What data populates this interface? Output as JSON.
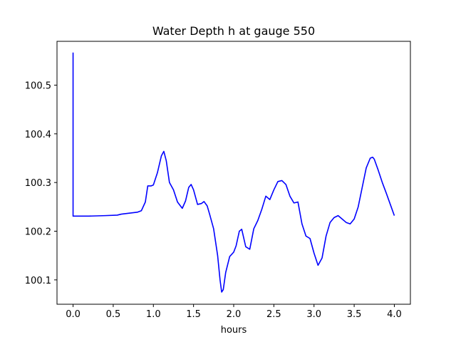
{
  "chart_data": {
    "type": "line",
    "title": "Water Depth h at gauge 550",
    "xlabel": "hours",
    "ylabel": "",
    "xlim": [
      -0.2,
      4.2
    ],
    "ylim": [
      100.05,
      100.59
    ],
    "x_ticks": [
      0.0,
      0.5,
      1.0,
      1.5,
      2.0,
      2.5,
      3.0,
      3.5,
      4.0
    ],
    "x_tick_labels": [
      "0.0",
      "0.5",
      "1.0",
      "1.5",
      "2.0",
      "2.5",
      "3.0",
      "3.5",
      "4.0"
    ],
    "y_ticks": [
      100.1,
      100.2,
      100.3,
      100.4,
      100.5
    ],
    "y_tick_labels": [
      "100.1",
      "100.2",
      "100.3",
      "100.4",
      "100.5"
    ],
    "grid": false,
    "series": [
      {
        "color": "#0000ff",
        "x": [
          0.0,
          0.0,
          0.0,
          0.2,
          0.4,
          0.55,
          0.6,
          0.7,
          0.8,
          0.85,
          0.9,
          0.93,
          0.97,
          1.0,
          1.05,
          1.1,
          1.13,
          1.16,
          1.2,
          1.25,
          1.3,
          1.36,
          1.4,
          1.44,
          1.47,
          1.5,
          1.55,
          1.6,
          1.63,
          1.67,
          1.7,
          1.75,
          1.8,
          1.83,
          1.85,
          1.87,
          1.9,
          1.95,
          2.0,
          2.03,
          2.07,
          2.1,
          2.15,
          2.2,
          2.25,
          2.3,
          2.35,
          2.4,
          2.45,
          2.5,
          2.55,
          2.6,
          2.65,
          2.7,
          2.75,
          2.8,
          2.85,
          2.9,
          2.95,
          3.0,
          3.05,
          3.1,
          3.15,
          3.2,
          3.25,
          3.3,
          3.35,
          3.4,
          3.45,
          3.5,
          3.55,
          3.6,
          3.65,
          3.7,
          3.73,
          3.75,
          3.8,
          3.85,
          3.9,
          3.95,
          4.0
        ],
        "y": [
          100.567,
          100.45,
          100.231,
          100.231,
          100.232,
          100.233,
          100.235,
          100.237,
          100.239,
          100.242,
          100.26,
          100.293,
          100.293,
          100.295,
          100.32,
          100.355,
          100.364,
          100.345,
          100.3,
          100.285,
          100.26,
          100.247,
          100.262,
          100.29,
          100.296,
          100.285,
          100.255,
          100.257,
          100.261,
          100.252,
          100.235,
          100.205,
          100.15,
          100.1,
          100.075,
          100.08,
          100.115,
          100.148,
          100.157,
          100.17,
          100.2,
          100.204,
          100.168,
          100.163,
          100.205,
          100.222,
          100.245,
          100.272,
          100.265,
          100.285,
          100.302,
          100.304,
          100.296,
          100.272,
          100.258,
          100.26,
          100.215,
          100.19,
          100.185,
          100.155,
          100.13,
          100.145,
          100.19,
          100.218,
          100.228,
          100.232,
          100.225,
          100.218,
          100.215,
          100.225,
          100.25,
          100.29,
          100.33,
          100.35,
          100.352,
          100.348,
          100.325,
          100.3,
          100.278,
          100.255,
          100.232
        ]
      }
    ]
  }
}
